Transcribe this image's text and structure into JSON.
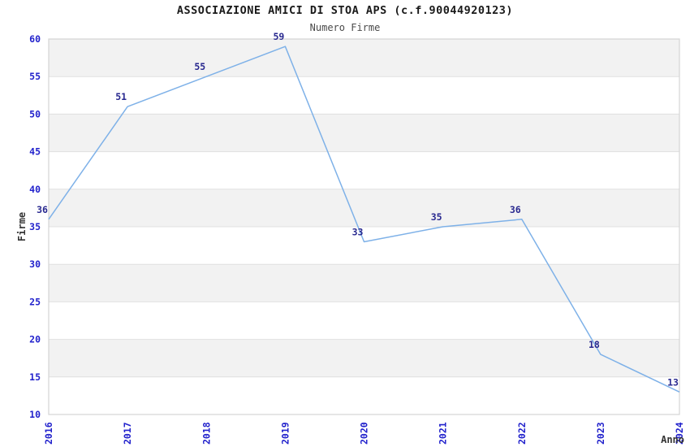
{
  "chart_data": {
    "type": "line",
    "title": "ASSOCIAZIONE AMICI DI STOA APS (c.f.90044920123)",
    "subtitle": "Numero Firme",
    "xlabel": "Anno",
    "ylabel": "Firme",
    "x": [
      "2016",
      "2017",
      "2018",
      "2019",
      "2020",
      "2021",
      "2022",
      "2023",
      "2024"
    ],
    "series": [
      {
        "name": "Numero Firme",
        "values": [
          36,
          51,
          55,
          59,
          33,
          35,
          36,
          18,
          13
        ]
      }
    ],
    "ylim": [
      10,
      60
    ],
    "yticks": [
      10,
      15,
      20,
      25,
      30,
      35,
      40,
      45,
      50,
      55,
      60
    ],
    "grid": "horizontal-lines-with-alternating-bands",
    "legend_position": "none",
    "show_value_labels": true,
    "colors": {
      "line": "#7EB1E8",
      "tick_label": "#2222CC",
      "value_label": "#28288F",
      "band": "#F2F2F2",
      "gridline": "#E0E0E0",
      "plot_border": "#D4D4D4",
      "title": "#1A1A1A",
      "subtitle": "#4A4A4A",
      "axis_label": "#333333",
      "background": "#FFFFFF"
    }
  }
}
